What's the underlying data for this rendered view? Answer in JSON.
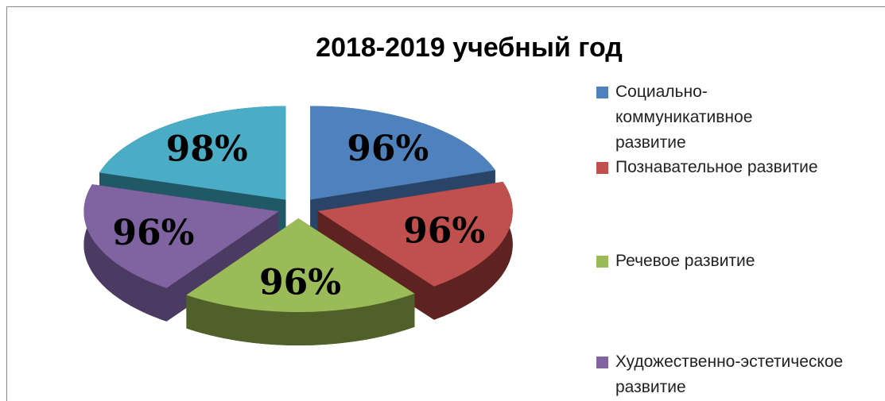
{
  "chart_data": {
    "type": "pie",
    "title": "2018-2019 учебный год",
    "categories": [
      "Социально-коммуникативное развитие",
      "Познавательное развитие",
      "Речевое развитие",
      "Художественно-эстетическое развитие",
      null
    ],
    "values": [
      96,
      96,
      96,
      96,
      98
    ],
    "value_labels": [
      "96%",
      "96%",
      "96%",
      "96%",
      "98%"
    ],
    "colors": [
      "#4f81bd",
      "#c0504d",
      "#9bbb59",
      "#8064a2",
      "#4bacc6"
    ],
    "side_colors": [
      "#2a4467",
      "#5e2221",
      "#4f6128",
      "#4b3a61",
      "#205866"
    ],
    "legend": "right"
  }
}
